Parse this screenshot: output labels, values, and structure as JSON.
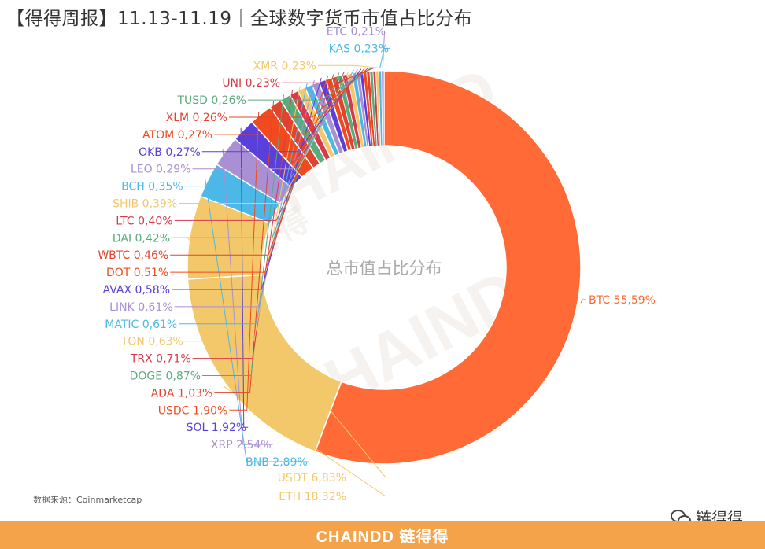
{
  "header": {
    "title": "【得得周报】11.13-11.19｜全球数字货币市值占比分布"
  },
  "watermark": {
    "text": "CHAINDD",
    "cn_text": "链得得"
  },
  "source": {
    "text": "数据来源：Coinmarketcap"
  },
  "brand": {
    "wechat_label": "链得得",
    "footer_logo": "CHAINDD 链得得",
    "footer_color": "#f5a34b"
  },
  "chart_data": {
    "type": "pie",
    "donut": true,
    "center_label": "总市值占比分布",
    "start_angle": "12 o'clock",
    "direction": "clockwise",
    "slices": [
      {
        "name": "BTC",
        "value": 55.59,
        "label": "BTC 55,59%",
        "color": "#ff6a36"
      },
      {
        "name": "ETH",
        "value": 18.32,
        "label": "ETH 18,32%",
        "color": "#f3c86a"
      },
      {
        "name": "USDT",
        "value": 6.83,
        "label": "USDT 6,83%",
        "color": "#f3c86a"
      },
      {
        "name": "BNB",
        "value": 2.89,
        "label": "BNB 2,89%",
        "color": "#4cb8e8"
      },
      {
        "name": "XRP",
        "value": 2.54,
        "label": "XRP 2,54%",
        "color": "#a98fd4"
      },
      {
        "name": "SOL",
        "value": 1.92,
        "label": "SOL 1,92%",
        "color": "#5b3fd9"
      },
      {
        "name": "USDC",
        "value": 1.9,
        "label": "USDC 1,90%",
        "color": "#f04a1e"
      },
      {
        "name": "ADA",
        "value": 1.03,
        "label": "ADA 1,03%",
        "color": "#e0442e"
      },
      {
        "name": "DOGE",
        "value": 0.87,
        "label": "DOGE 0,87%",
        "color": "#5aab7c"
      },
      {
        "name": "TRX",
        "value": 0.71,
        "label": "TRX 0,71%",
        "color": "#d73a4a"
      },
      {
        "name": "TON",
        "value": 0.63,
        "label": "TON 0,63%",
        "color": "#f3c86a"
      },
      {
        "name": "MATIC",
        "value": 0.61,
        "label": "MATIC 0,61%",
        "color": "#4cb8e8"
      },
      {
        "name": "LINK",
        "value": 0.61,
        "label": "LINK 0,61%",
        "color": "#a98fd4"
      },
      {
        "name": "AVAX",
        "value": 0.58,
        "label": "AVAX 0,58%",
        "color": "#5b3fd9"
      },
      {
        "name": "DOT",
        "value": 0.51,
        "label": "DOT 0,51%",
        "color": "#f04a1e"
      },
      {
        "name": "WBTC",
        "value": 0.46,
        "label": "WBTC 0,46%",
        "color": "#e0442e"
      },
      {
        "name": "DAI",
        "value": 0.42,
        "label": "DAI 0,42%",
        "color": "#5aab7c"
      },
      {
        "name": "LTC",
        "value": 0.4,
        "label": "LTC 0,40%",
        "color": "#d73a4a"
      },
      {
        "name": "SHIB",
        "value": 0.39,
        "label": "SHIB 0,39%",
        "color": "#f3c86a"
      },
      {
        "name": "BCH",
        "value": 0.35,
        "label": "BCH 0,35%",
        "color": "#4cb8e8"
      },
      {
        "name": "LEO",
        "value": 0.29,
        "label": "LEO 0,29%",
        "color": "#a98fd4"
      },
      {
        "name": "OKB",
        "value": 0.27,
        "label": "OKB 0,27%",
        "color": "#5b3fd9"
      },
      {
        "name": "ATOM",
        "value": 0.27,
        "label": "ATOM 0,27%",
        "color": "#f04a1e"
      },
      {
        "name": "XLM",
        "value": 0.26,
        "label": "XLM 0,26%",
        "color": "#e0442e"
      },
      {
        "name": "TUSD",
        "value": 0.26,
        "label": "TUSD 0,26%",
        "color": "#5aab7c"
      },
      {
        "name": "UNI",
        "value": 0.23,
        "label": "UNI 0,23%",
        "color": "#d73a4a"
      },
      {
        "name": "XMR",
        "value": 0.23,
        "label": "XMR 0,23%",
        "color": "#f3c86a"
      },
      {
        "name": "KAS",
        "value": 0.23,
        "label": "KAS 0,23%",
        "color": "#4cb8e8"
      },
      {
        "name": "ETC",
        "value": 0.21,
        "label": "ETC 0,21%",
        "color": "#a98fd4"
      }
    ]
  }
}
